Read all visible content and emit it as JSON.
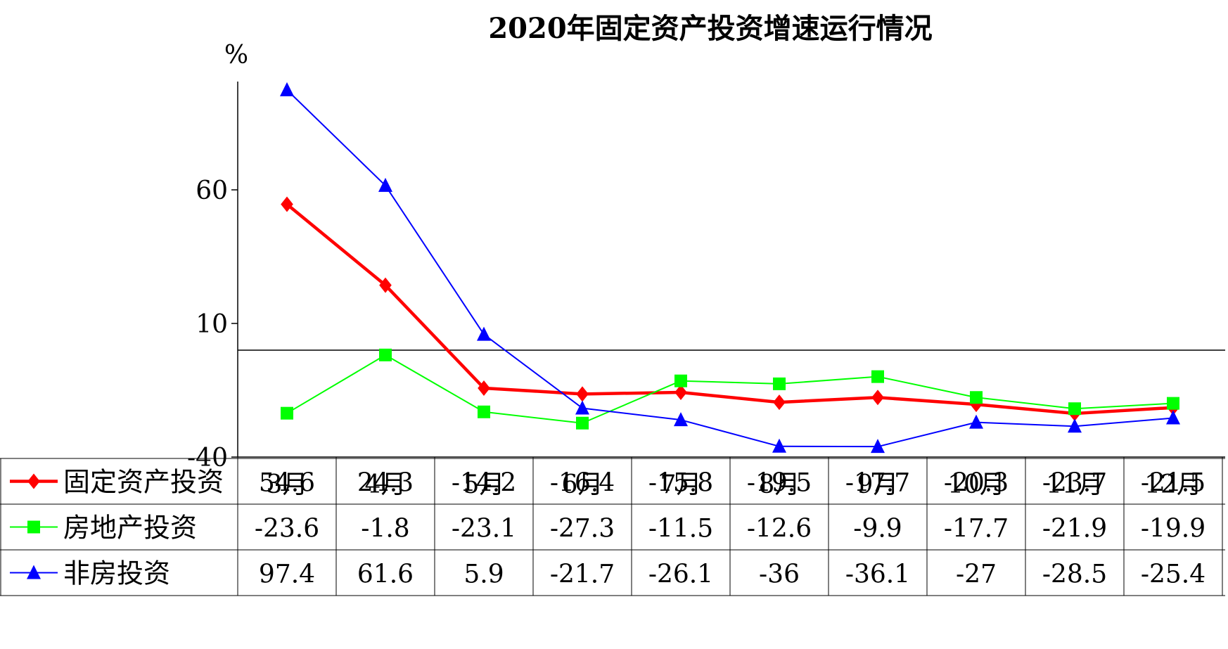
{
  "chart_data": {
    "type": "line",
    "title": "2020年固定资产投资增速运行情况",
    "ylabel": "%",
    "xlabel": "",
    "ylim": [
      -40,
      100
    ],
    "yticks": [
      60,
      10,
      -40
    ],
    "baseline": 0,
    "categories": [
      "3月",
      "4月",
      "5月",
      "6月",
      "7月",
      "8月",
      "9月",
      "10月",
      "11月",
      "12月"
    ],
    "series": [
      {
        "name": "固定资产投资",
        "color": "#ff0000",
        "marker": "diamond",
        "values": [
          54.6,
          24.3,
          -14.2,
          -16.4,
          -15.8,
          -19.5,
          -17.7,
          -20.3,
          -23.7,
          -21.5
        ],
        "labels": [
          "54.6",
          "24.3",
          "-14.2",
          "-16.4",
          "-15.8",
          "-19.5",
          "-17.7",
          "-20.3",
          "-23.7",
          "-21.5"
        ]
      },
      {
        "name": "房地产投资",
        "color": "#00ff00",
        "marker": "square",
        "values": [
          -23.6,
          -1.8,
          -23.1,
          -27.3,
          -11.5,
          -12.6,
          -9.9,
          -17.7,
          -21.9,
          -19.9
        ],
        "labels": [
          "-23.6",
          "-1.8",
          "-23.1",
          "-27.3",
          "-11.5",
          "-12.6",
          "-9.9",
          "-17.7",
          "-21.9",
          "-19.9"
        ]
      },
      {
        "name": "非房投资",
        "color": "#0000ff",
        "marker": "triangle",
        "values": [
          97.4,
          61.6,
          5.9,
          -21.7,
          -26.1,
          -36,
          -36.1,
          -27,
          -28.5,
          -25.4
        ],
        "labels": [
          "97.4",
          "61.6",
          "5.9",
          "-21.7",
          "-26.1",
          "-36",
          "-36.1",
          "-27",
          "-28.5",
          "-25.4"
        ]
      }
    ],
    "legend_position": "data-table-left",
    "grid": false
  }
}
